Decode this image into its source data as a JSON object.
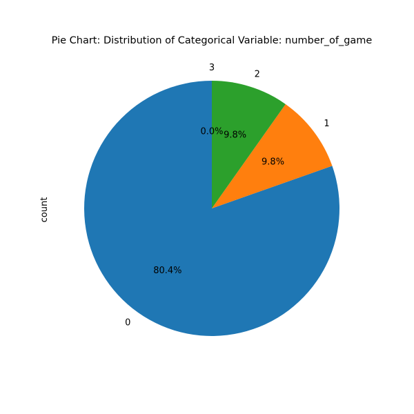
{
  "chart_data": {
    "type": "pie",
    "title": "Pie Chart: Distribution of Categorical Variable: number_of_game",
    "ylabel": "count",
    "categories": [
      "0",
      "1",
      "2",
      "3"
    ],
    "percent_labels": [
      "80.4%",
      "9.8%",
      "9.8%",
      "0.0%"
    ],
    "values": [
      80.4,
      9.8,
      9.8,
      0.0
    ],
    "colors": [
      "#1f77b4",
      "#ff7f0e",
      "#2ca02c",
      "#d62728"
    ],
    "start_angle_deg": 90,
    "direction": "counterclockwise"
  }
}
